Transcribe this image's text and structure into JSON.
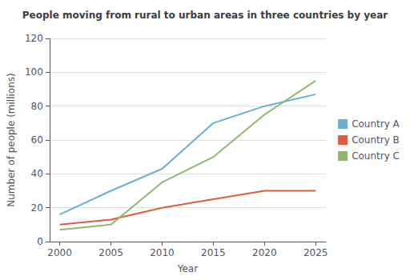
{
  "chart_data": {
    "type": "line",
    "title": "People moving from rural to urban areas in three countries by year",
    "xlabel": "Year",
    "ylabel": "Number of people (millions)",
    "x": [
      2000,
      2005,
      2010,
      2015,
      2020,
      2025
    ],
    "series": [
      {
        "name": "Country A",
        "color": "#6baed6",
        "values": [
          16,
          30,
          43,
          70,
          80,
          87
        ]
      },
      {
        "name": "Country B",
        "color": "#e05c3a",
        "values": [
          10,
          13,
          20,
          25,
          30,
          30
        ]
      },
      {
        "name": "Country C",
        "color": "#8db870",
        "values": [
          7,
          10,
          35,
          50,
          75,
          95
        ]
      }
    ],
    "xlim": [
      1999,
      2026
    ],
    "xticks": [
      2000,
      2005,
      2010,
      2015,
      2020,
      2025
    ],
    "ylim": [
      0,
      120
    ],
    "yticks": [
      0,
      20,
      40,
      60,
      80,
      100,
      120
    ],
    "grid": true,
    "legend": "right"
  }
}
